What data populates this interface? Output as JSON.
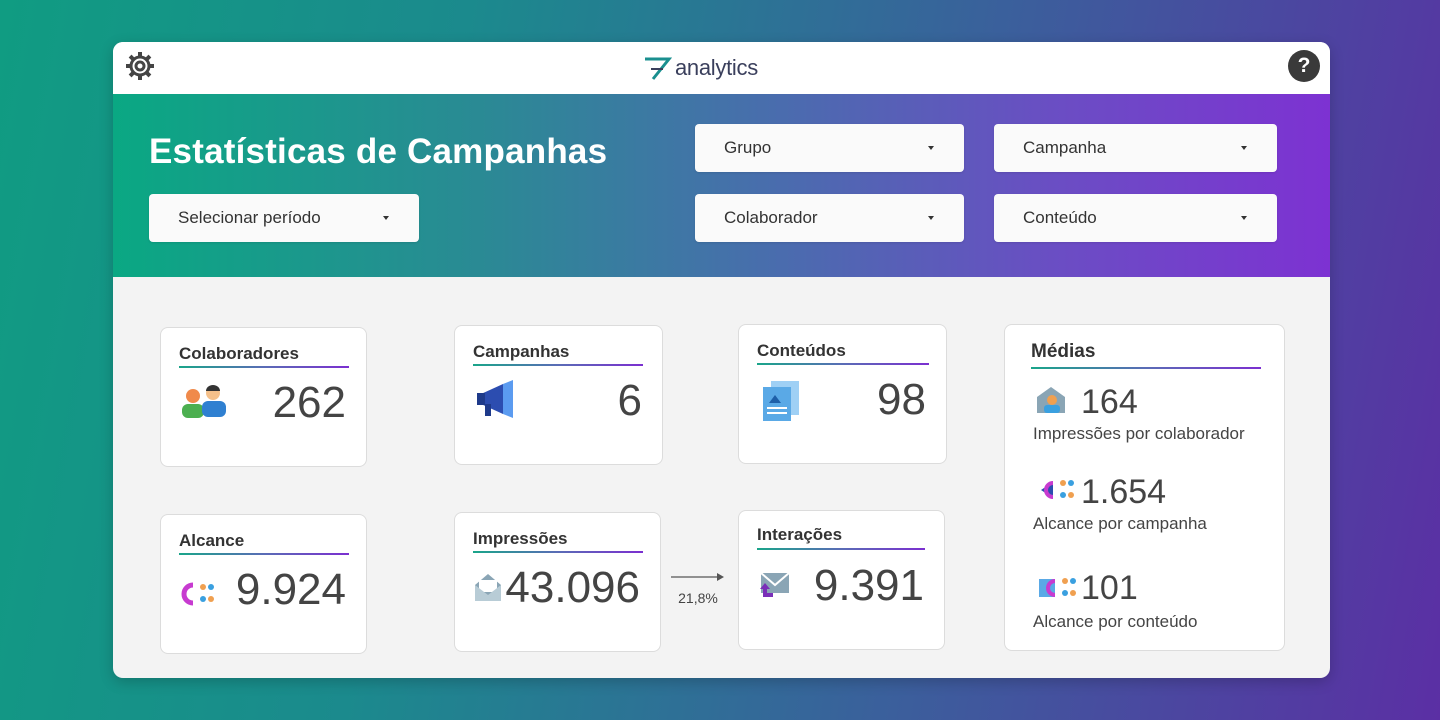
{
  "header": {
    "logo": "analytics",
    "help": "?"
  },
  "banner": {
    "title": "Estatísticas de Campanhas",
    "filters": [
      "Grupo",
      "Campanha",
      "Selecionar período",
      "Colaborador",
      "Conteúdo"
    ]
  },
  "cards": [
    {
      "title": "Colaboradores",
      "value": "262"
    },
    {
      "title": "Campanhas",
      "value": "6"
    },
    {
      "title": "Conteúdos",
      "value": "98"
    },
    {
      "title": "Alcance",
      "value": "9.924"
    },
    {
      "title": "Impressões",
      "value": "43.096"
    },
    {
      "title": "Interações",
      "value": "9.391"
    }
  ],
  "conversion": "21,8%",
  "averages": {
    "title": "Médias",
    "items": [
      {
        "value": "164",
        "label": "Impressões por colaborador"
      },
      {
        "value": "1.654",
        "label": "Alcance por campanha"
      },
      {
        "value": "101",
        "label": "Alcance por conteúdo"
      }
    ]
  }
}
